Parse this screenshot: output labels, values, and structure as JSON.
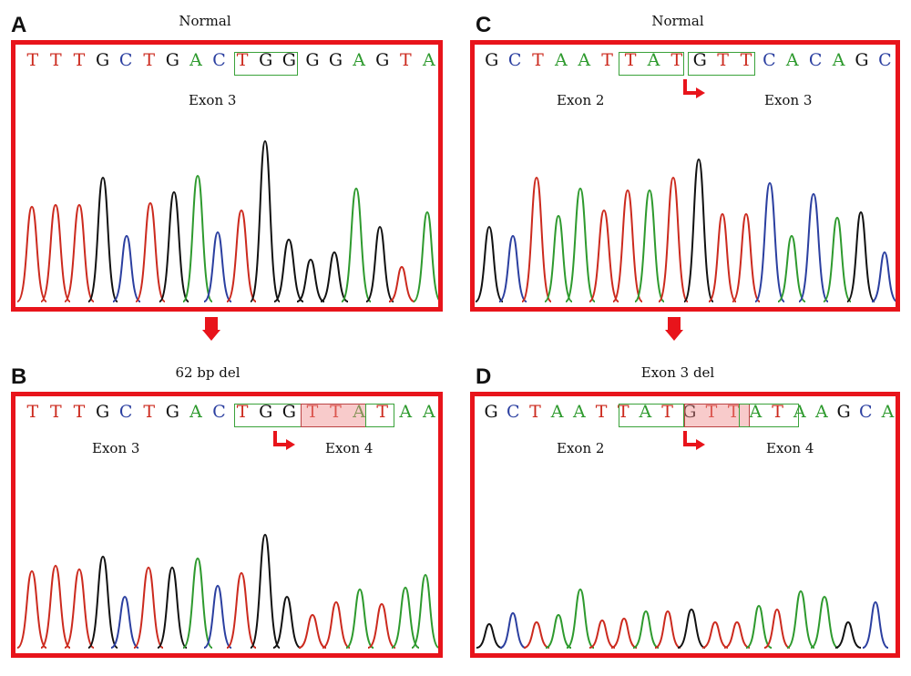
{
  "colors": {
    "A": "#2e9a2e",
    "C": "#2b3fa0",
    "G": "#111111",
    "T": "#cc2a1e",
    "frame": "#e8141b"
  },
  "panels": {
    "A": {
      "letter": "A",
      "title": "Normal",
      "sequence": "TTTGCTGACTGGGGAGTA",
      "labels": [
        "Exon 3"
      ]
    },
    "B": {
      "letter": "B",
      "title": "62 bp del",
      "sequence": "TTTGCTGACTGGTTATAA",
      "labels": [
        "Exon 3",
        "Exon 4"
      ]
    },
    "C": {
      "letter": "C",
      "title": "Normal",
      "sequence": "GCTAATTATGTTCACAGC",
      "labels": [
        "Exon 2",
        "Exon 3"
      ]
    },
    "D": {
      "letter": "D",
      "title": "Exon 3 del",
      "sequence": "GCTAATTATGTTATAAGCA",
      "labels": [
        "Exon 2",
        "Exon 4"
      ]
    }
  }
}
